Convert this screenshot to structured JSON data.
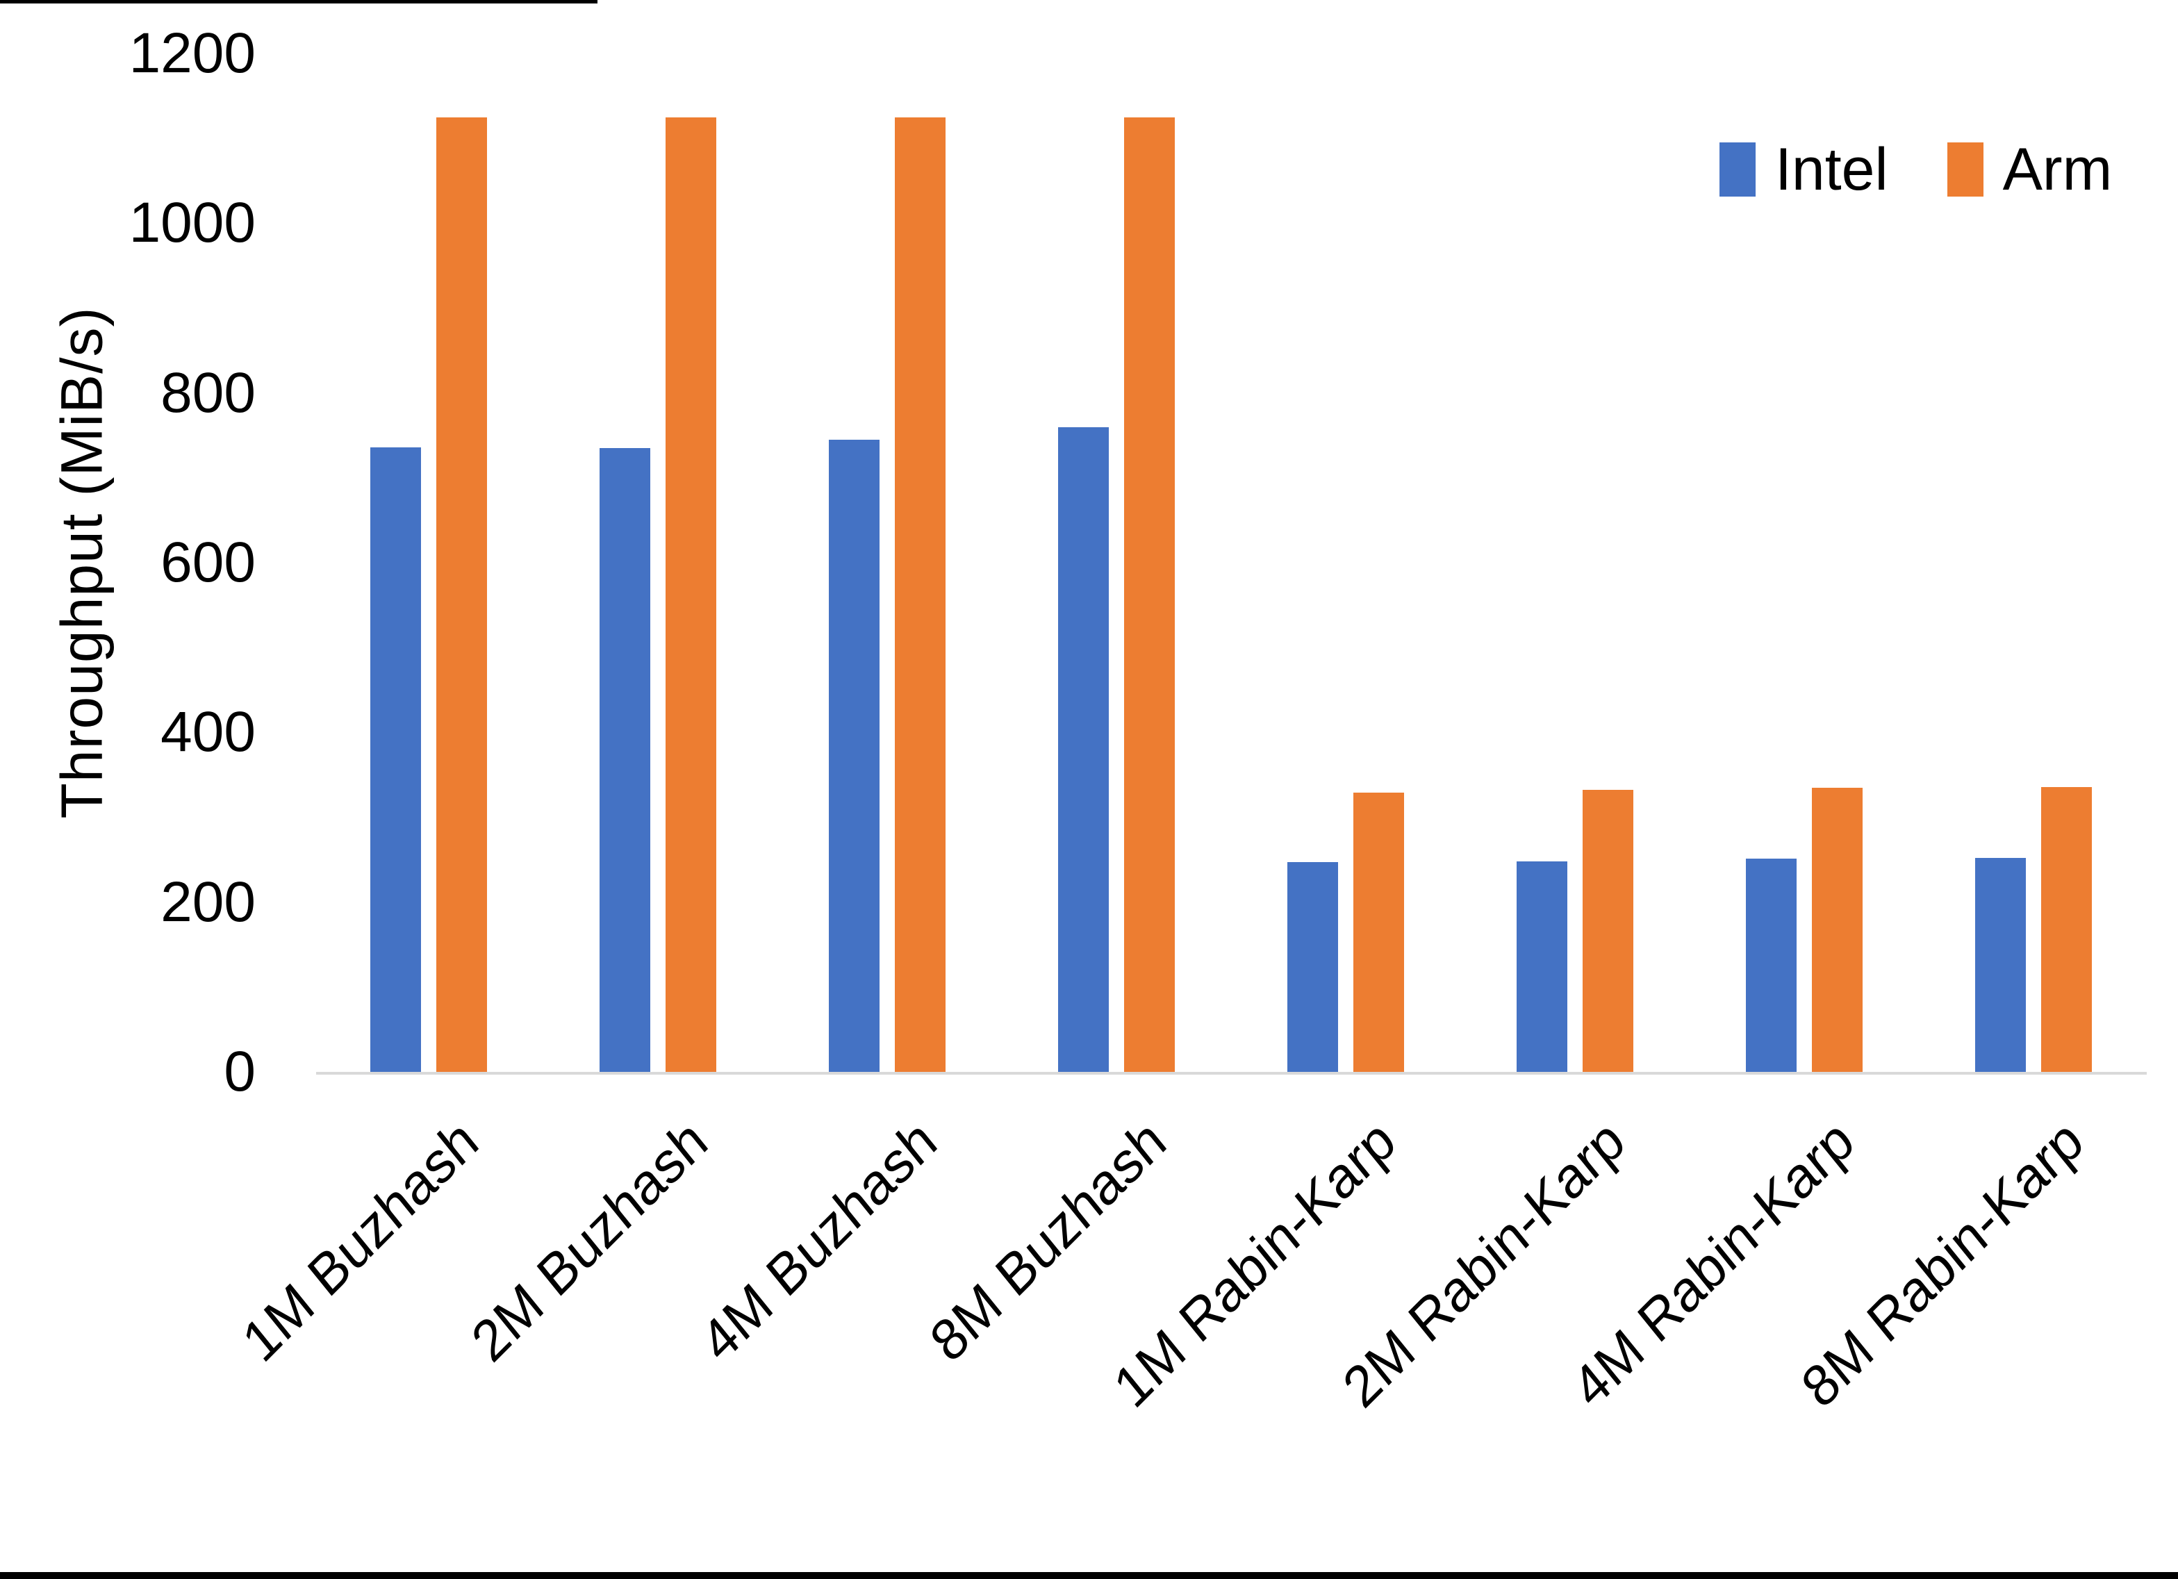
{
  "chart_data": {
    "type": "bar",
    "title": "",
    "ylabel": "Throughput (MiB/s)",
    "xlabel": "",
    "categories": [
      "1M Buzhash",
      "2M Buzhash",
      "4M Buzhash",
      "8M Buzhash",
      "1M Rabin-Karp",
      "2M Rabin-Karp",
      "4M Rabin-Karp",
      "8M Rabin-Karp"
    ],
    "series": [
      {
        "name": "Intel",
        "color": "#4472C4",
        "values": [
          736,
          735,
          745,
          760,
          247,
          248,
          251,
          252
        ]
      },
      {
        "name": "Arm",
        "color": "#ED7D31",
        "values": [
          1125,
          1125,
          1125,
          1125,
          329,
          332,
          335,
          336
        ]
      }
    ],
    "ylim": [
      0,
      1200
    ],
    "ytick_step": 200,
    "yticks": [
      0,
      200,
      400,
      600,
      800,
      1000,
      1200
    ],
    "grid": false,
    "legend_position": "top-right"
  },
  "colors": {
    "background": "#FFFFFF",
    "axis_line": "#D9D9D9",
    "text": "#000000",
    "edge_artifact": "#000000"
  }
}
